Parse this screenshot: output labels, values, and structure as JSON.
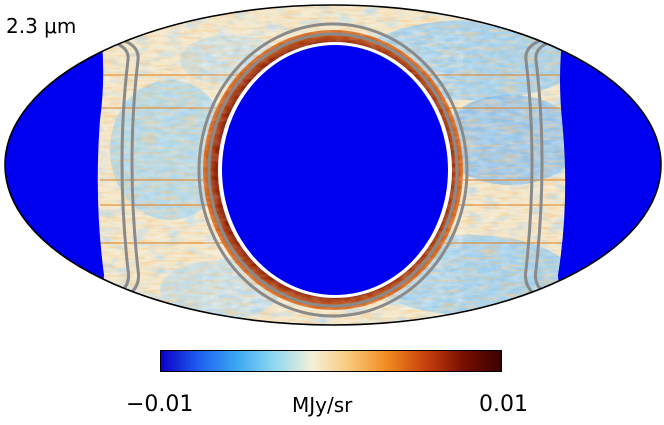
{
  "map": {
    "band_label": "2.3 μm",
    "projection": "mollweide",
    "colormap": [
      "#0a00c8",
      "#1f5ff0",
      "#3aa7f0",
      "#8fd8f0",
      "#f4f0d8",
      "#f8c878",
      "#f08a1e",
      "#c8400c",
      "#781000",
      "#3a0000"
    ],
    "masked_color": "#0000f0",
    "contour_color": "#8a8a8a"
  },
  "colorbar": {
    "min_label": "−0.01",
    "max_label": "0.01",
    "unit_label": "MJy/sr"
  }
}
